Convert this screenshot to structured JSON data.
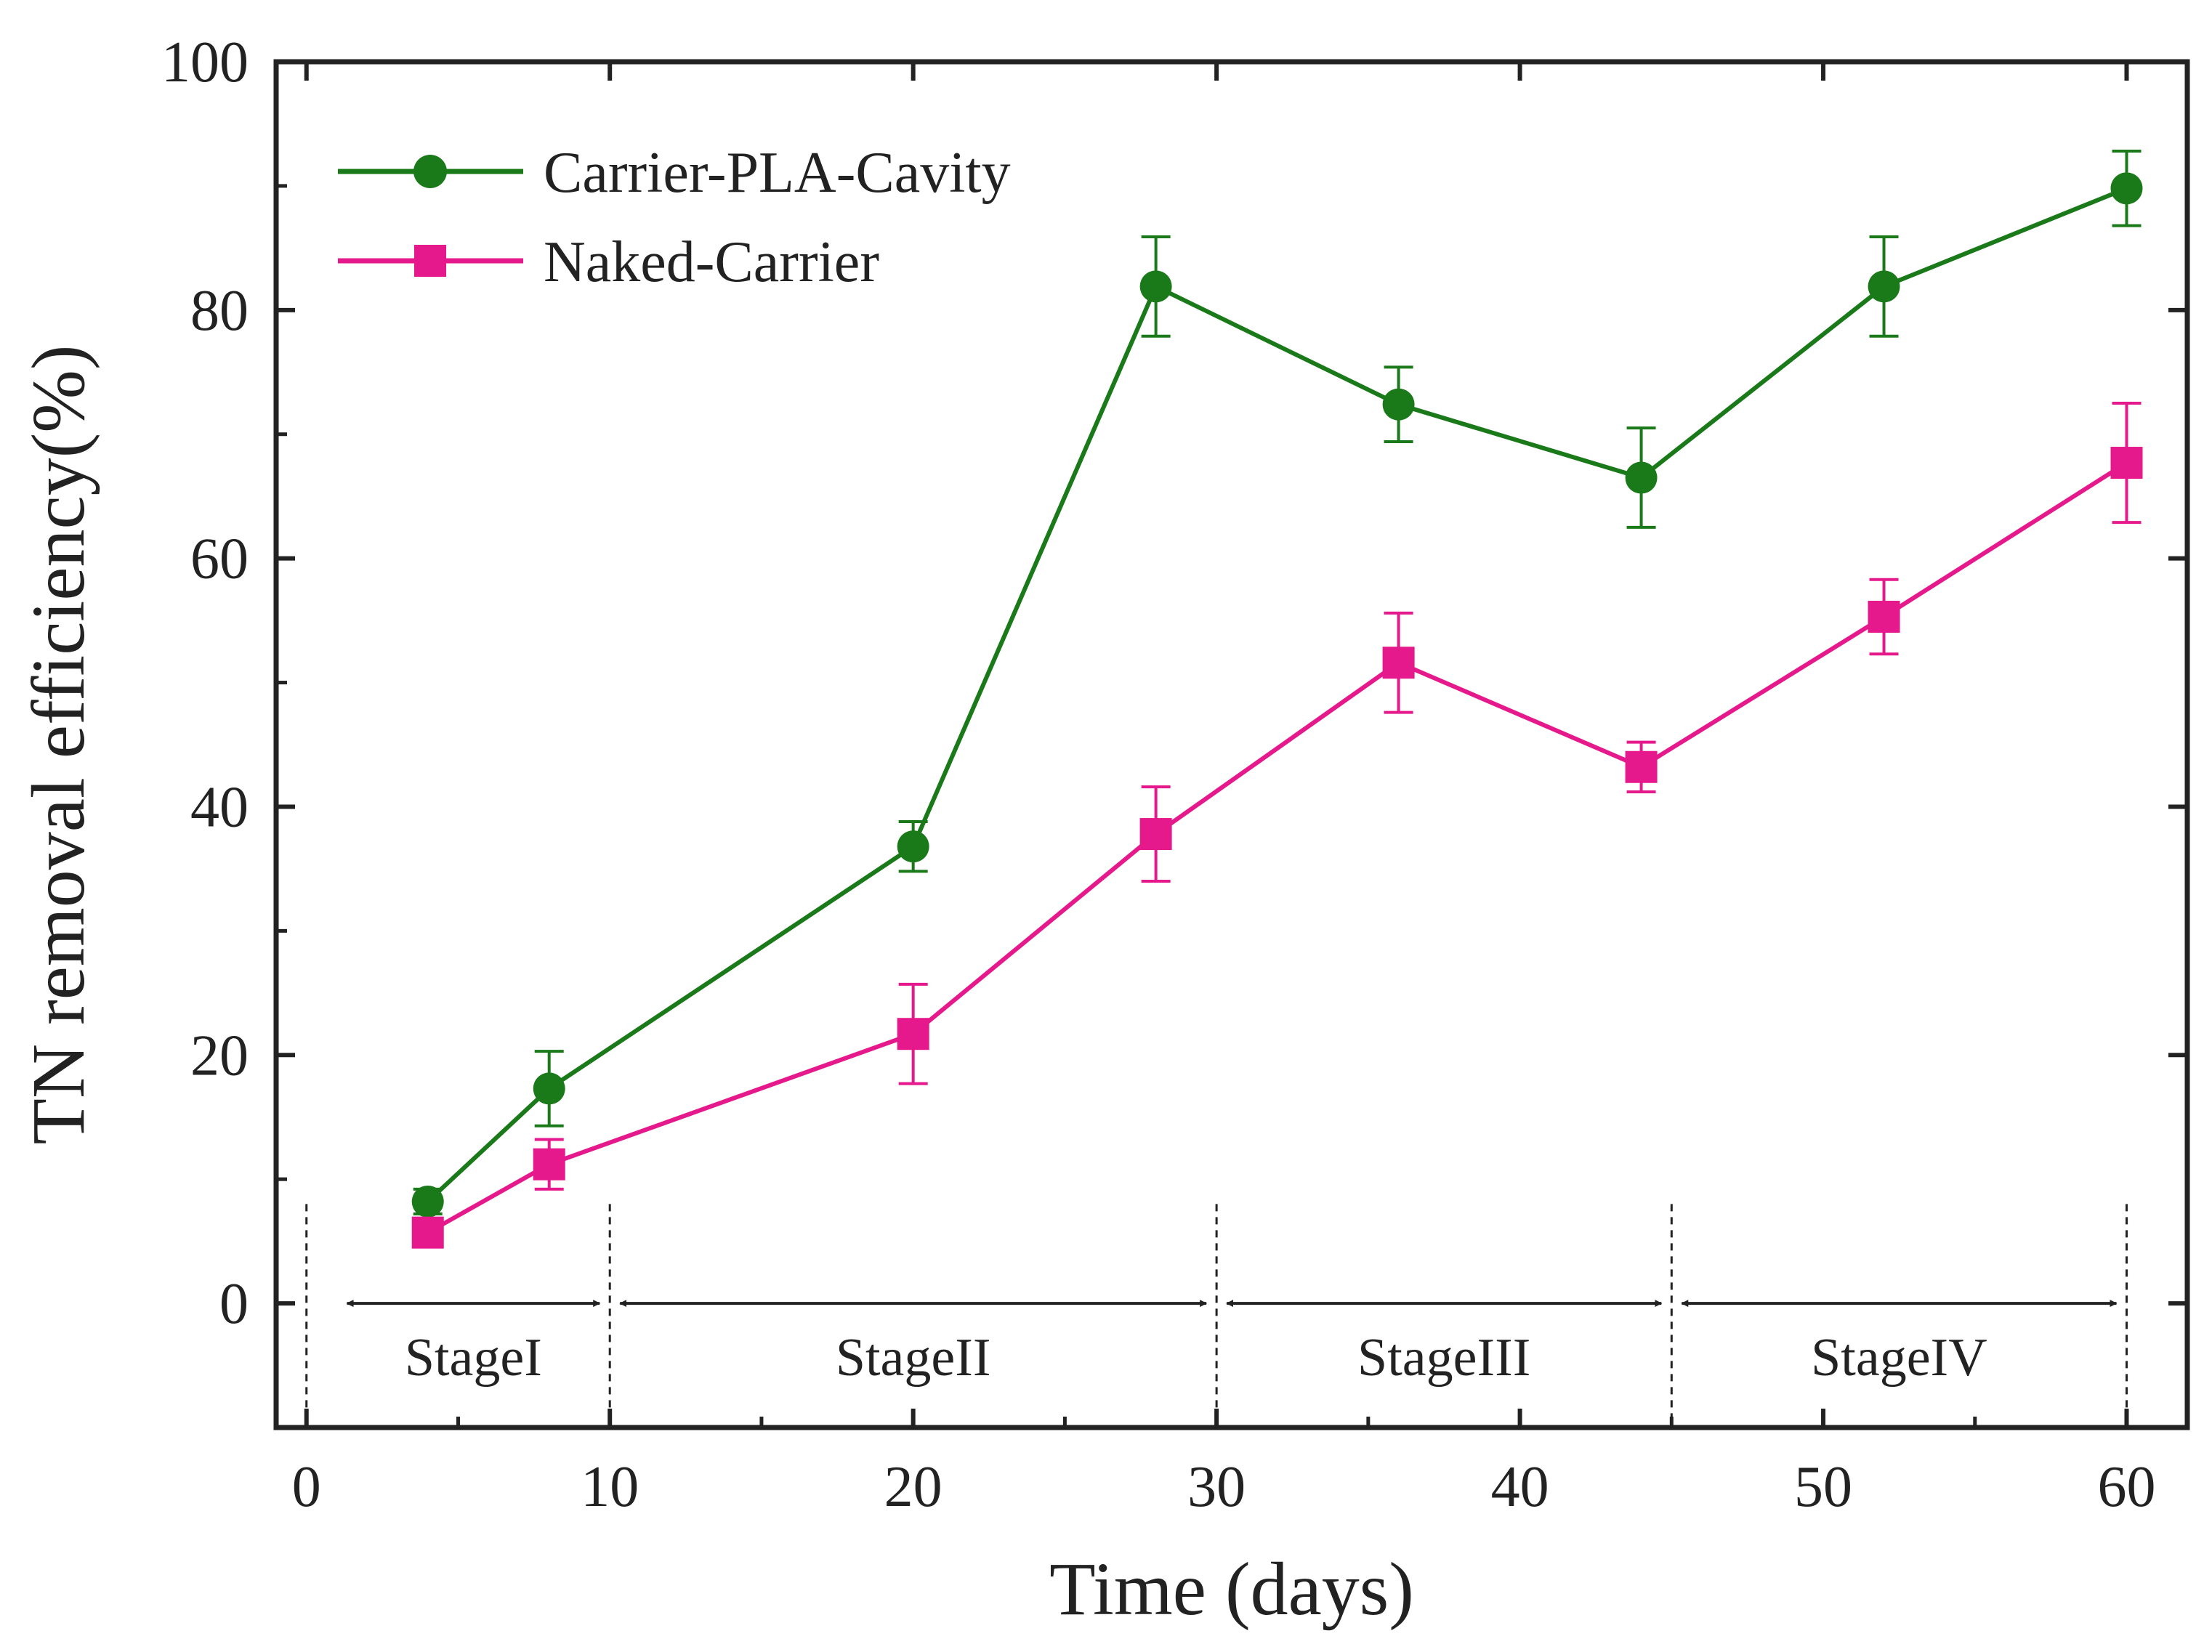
{
  "chart_data": {
    "type": "line",
    "title": "",
    "xlabel": "Time (days)",
    "ylabel": "TN removal efficiency(%)",
    "xlim": [
      -1,
      62
    ],
    "ylim": [
      -10,
      100
    ],
    "xticks": [
      0,
      10,
      20,
      30,
      40,
      50,
      60
    ],
    "yticks": [
      0,
      20,
      40,
      60,
      80,
      100
    ],
    "grid": false,
    "legend_position": "top-left",
    "series": [
      {
        "name": "Carrier-PLA-Cavity",
        "color": "#1a7a1a",
        "marker": "circle",
        "x": [
          4,
          8,
          20,
          28,
          36,
          44,
          52,
          60
        ],
        "values": [
          8.2,
          17.3,
          36.8,
          81.9,
          72.4,
          66.5,
          81.9,
          89.8
        ],
        "errors": [
          1.0,
          3.0,
          2.0,
          4.0,
          3.0,
          4.0,
          4.0,
          3.0
        ]
      },
      {
        "name": "Naked-Carrier",
        "color": "#e6198c",
        "marker": "square",
        "x": [
          4,
          8,
          20,
          28,
          36,
          44,
          52,
          60
        ],
        "values": [
          5.7,
          11.2,
          21.7,
          37.8,
          51.6,
          43.2,
          55.3,
          67.7
        ],
        "errors": [
          0.8,
          2.0,
          4.0,
          3.8,
          4.0,
          2.0,
          3.0,
          4.8
        ]
      }
    ],
    "stages": [
      {
        "label": "StageI",
        "start": 1,
        "end": 10
      },
      {
        "label": "StageII",
        "start": 10,
        "end": 30
      },
      {
        "label": "StageIII",
        "start": 30,
        "end": 45
      },
      {
        "label": "StageIV",
        "start": 45,
        "end": 60
      }
    ],
    "stage_boundaries": [
      0,
      10,
      30,
      45,
      60
    ]
  }
}
